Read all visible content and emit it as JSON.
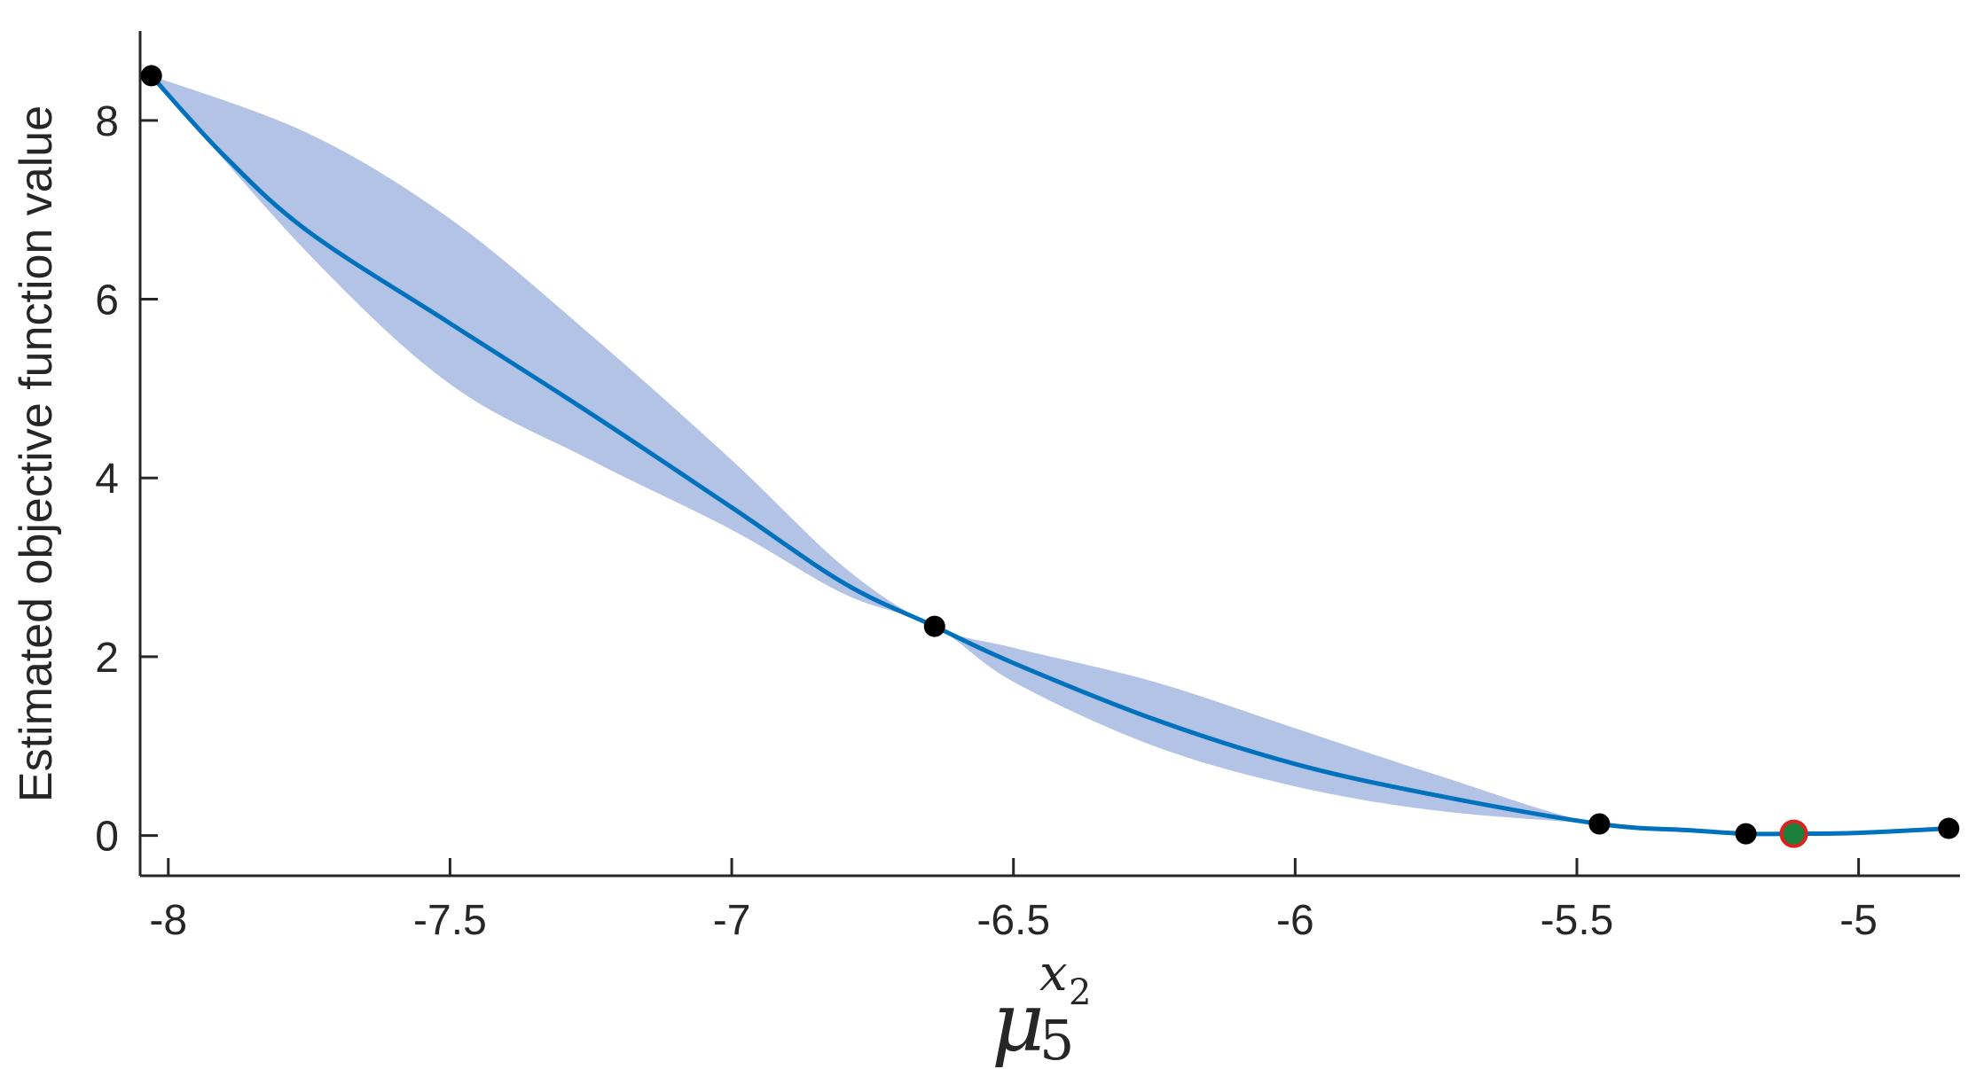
{
  "chart_data": {
    "type": "line",
    "title": "",
    "ylabel": "Estimated objective function value",
    "xlabel": {
      "symbol": "μ",
      "subscript": "5",
      "superscript_var": "x",
      "superscript_index": "2"
    },
    "xlim": [
      -8.05,
      -4.82
    ],
    "ylim": [
      -0.45,
      9.0
    ],
    "x_ticks": [
      -8,
      -7.5,
      -7,
      -6.5,
      -6,
      -5.5,
      -5
    ],
    "x_tick_labels": [
      "-8",
      "-7.5",
      "-7",
      "-6.5",
      "-6",
      "-5.5",
      "-5"
    ],
    "y_ticks": [
      0,
      2,
      4,
      6,
      8
    ],
    "y_tick_labels": [
      "0",
      "2",
      "4",
      "6",
      "8"
    ],
    "grid": false,
    "colors": {
      "mean_line": "#0072BD",
      "confidence_band": "#B3C3E6",
      "observed_points": "#000000",
      "best_point_fill": "#1B7F3B",
      "best_point_edge": "#E02020",
      "axis": "#262626"
    },
    "observed_points": [
      {
        "x": -8.03,
        "y": 8.5
      },
      {
        "x": -6.64,
        "y": 2.34
      },
      {
        "x": -5.46,
        "y": 0.13
      },
      {
        "x": -5.2,
        "y": 0.02
      },
      {
        "x": -4.84,
        "y": 0.08
      }
    ],
    "best_point": {
      "x": -5.115,
      "y": 0.02
    },
    "mean_curve": [
      {
        "x": -8.03,
        "y": 8.5
      },
      {
        "x": -7.9,
        "y": 7.6
      },
      {
        "x": -7.75,
        "y": 6.75
      },
      {
        "x": -7.5,
        "y": 5.73
      },
      {
        "x": -7.25,
        "y": 4.72
      },
      {
        "x": -7.0,
        "y": 3.67
      },
      {
        "x": -6.8,
        "y": 2.82
      },
      {
        "x": -6.64,
        "y": 2.34
      },
      {
        "x": -6.5,
        "y": 1.93
      },
      {
        "x": -6.25,
        "y": 1.3
      },
      {
        "x": -6.0,
        "y": 0.8
      },
      {
        "x": -5.75,
        "y": 0.45
      },
      {
        "x": -5.46,
        "y": 0.13
      },
      {
        "x": -5.3,
        "y": 0.06
      },
      {
        "x": -5.2,
        "y": 0.02
      },
      {
        "x": -5.115,
        "y": 0.02
      },
      {
        "x": -5.0,
        "y": 0.03
      },
      {
        "x": -4.84,
        "y": 0.08
      }
    ],
    "band_upper": [
      {
        "x": -8.03,
        "y": 8.5
      },
      {
        "x": -7.75,
        "y": 7.85
      },
      {
        "x": -7.5,
        "y": 6.9
      },
      {
        "x": -7.25,
        "y": 5.6
      },
      {
        "x": -7.0,
        "y": 4.2
      },
      {
        "x": -6.8,
        "y": 3.0
      },
      {
        "x": -6.64,
        "y": 2.34
      },
      {
        "x": -6.5,
        "y": 2.1
      },
      {
        "x": -6.25,
        "y": 1.72
      },
      {
        "x": -6.0,
        "y": 1.2
      },
      {
        "x": -5.75,
        "y": 0.68
      },
      {
        "x": -5.46,
        "y": 0.13
      },
      {
        "x": -5.2,
        "y": 0.02
      },
      {
        "x": -5.0,
        "y": 0.03
      },
      {
        "x": -4.84,
        "y": 0.08
      }
    ],
    "band_lower": [
      {
        "x": -8.03,
        "y": 8.5
      },
      {
        "x": -7.75,
        "y": 6.5
      },
      {
        "x": -7.5,
        "y": 5.05
      },
      {
        "x": -7.25,
        "y": 4.2
      },
      {
        "x": -7.0,
        "y": 3.42
      },
      {
        "x": -6.8,
        "y": 2.7
      },
      {
        "x": -6.64,
        "y": 2.34
      },
      {
        "x": -6.5,
        "y": 1.72
      },
      {
        "x": -6.25,
        "y": 1.0
      },
      {
        "x": -6.0,
        "y": 0.55
      },
      {
        "x": -5.75,
        "y": 0.28
      },
      {
        "x": -5.46,
        "y": 0.13
      },
      {
        "x": -5.2,
        "y": 0.02
      },
      {
        "x": -5.0,
        "y": 0.03
      },
      {
        "x": -4.84,
        "y": 0.08
      }
    ]
  }
}
